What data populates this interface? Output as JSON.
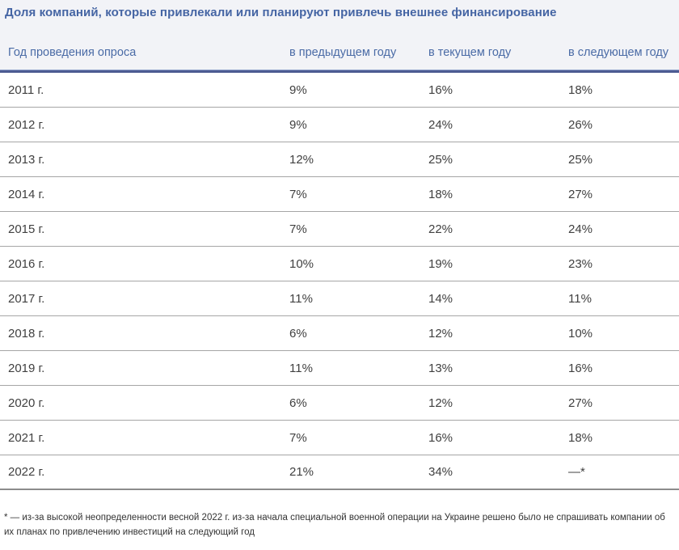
{
  "title": "Доля компаний, которые привлекали или планируют привлечь внешнее финансирование",
  "table": {
    "columns": [
      "Год проведения опроса",
      "в предыдущем году",
      "в текущем году",
      "в следующем году"
    ],
    "rows": [
      {
        "year": "2011 г.",
        "prev": "9%",
        "curr": "16%",
        "next": "18%"
      },
      {
        "year": "2012 г.",
        "prev": "9%",
        "curr": "24%",
        "next": "26%"
      },
      {
        "year": "2013 г.",
        "prev": "12%",
        "curr": "25%",
        "next": "25%"
      },
      {
        "year": "2014 г.",
        "prev": "7%",
        "curr": "18%",
        "next": "27%"
      },
      {
        "year": "2015 г.",
        "prev": "7%",
        "curr": "22%",
        "next": "24%"
      },
      {
        "year": "2016 г.",
        "prev": "10%",
        "curr": "19%",
        "next": "23%"
      },
      {
        "year": "2017 г.",
        "prev": "11%",
        "curr": "14%",
        "next": "11%"
      },
      {
        "year": "2018 г.",
        "prev": "6%",
        "curr": "12%",
        "next": "10%"
      },
      {
        "year": "2019 г.",
        "prev": "11%",
        "curr": "13%",
        "next": "16%"
      },
      {
        "year": "2020 г.",
        "prev": "6%",
        "curr": "12%",
        "next": "27%"
      },
      {
        "year": "2021 г.",
        "prev": "7%",
        "curr": "16%",
        "next": "18%"
      },
      {
        "year": "2022 г.",
        "prev": "21%",
        "curr": "34%",
        "next": "—*"
      }
    ]
  },
  "footnote": "* — из-за высокой неопределенности весной 2022 г. из-за начала специальной военной операции на Украине решено было не спрашивать компании об их планах по привлечению инвестиций на следующий год",
  "colors": {
    "title_text": "#4565a4",
    "header_text": "#4a6ba6",
    "thick_rule": "#4d5b92",
    "body_text": "#404040",
    "row_separator": "#a6a6a6",
    "bottom_border": "#8c8c8c",
    "header_band_bg": "#f2f3f7",
    "footnote_text": "#333333"
  },
  "chart_data": {
    "type": "table",
    "title": "Доля компаний, которые привлекали или планируют привлечь внешнее финансирование",
    "columns": [
      "Год проведения опроса",
      "в предыдущем году",
      "в текущем году",
      "в следующем году"
    ],
    "rows": [
      [
        "2011 г.",
        "9%",
        "16%",
        "18%"
      ],
      [
        "2012 г.",
        "9%",
        "24%",
        "26%"
      ],
      [
        "2013 г.",
        "12%",
        "25%",
        "25%"
      ],
      [
        "2014 г.",
        "7%",
        "18%",
        "27%"
      ],
      [
        "2015 г.",
        "7%",
        "22%",
        "24%"
      ],
      [
        "2016 г.",
        "10%",
        "19%",
        "23%"
      ],
      [
        "2017 г.",
        "11%",
        "14%",
        "11%"
      ],
      [
        "2018 г.",
        "6%",
        "12%",
        "10%"
      ],
      [
        "2019 г.",
        "11%",
        "13%",
        "16%"
      ],
      [
        "2020 г.",
        "6%",
        "12%",
        "27%"
      ],
      [
        "2021 г.",
        "7%",
        "16%",
        "18%"
      ],
      [
        "2022 г.",
        "21%",
        "34%",
        "—*"
      ]
    ],
    "footnote": "* — из-за высокой неопределенности весной 2022 г. из-за начала специальной военной операции на Украине решено было не спрашивать компании об их планах по привлечению инвестиций на следующий год"
  }
}
